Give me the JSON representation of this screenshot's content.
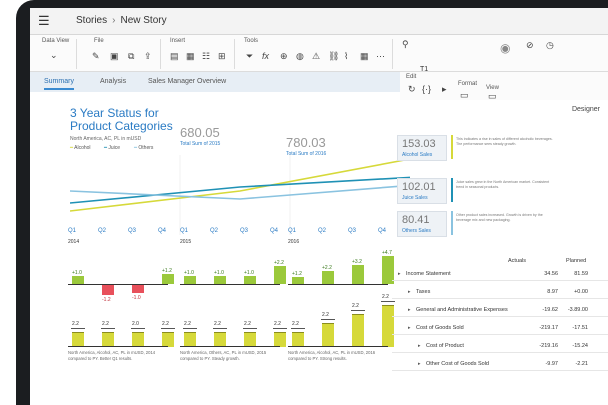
{
  "titlebar": {
    "crumb_root": "Stories",
    "crumb_current": "New Story"
  },
  "ribbon": {
    "data_view": "Data View",
    "file": "File",
    "insert": "Insert",
    "tools": "Tools",
    "edit": "Edit",
    "format": "Format",
    "view": "View",
    "search_value": "T1"
  },
  "tabs": [
    "Summary",
    "Analysis",
    "Sales Manager Overview"
  ],
  "designer_label": "Designer",
  "overview": {
    "title_line1": "3 Year Status for",
    "title_line2": "Product Categories",
    "subtitle": "North America, AC, PL in mUSD",
    "legend": [
      "Alcohol",
      "Juice",
      "Others"
    ],
    "totals": [
      {
        "value": "680.05",
        "label": "Total Sum of 2015"
      },
      {
        "value": "780.03",
        "label": "Total Sum of 2016"
      }
    ]
  },
  "kpis": [
    {
      "value": "153.03",
      "label": "Alcohol Sales",
      "color": "#d6d93a",
      "text": "This indicates a rise in sales of different alcoholic beverages. The performance sees steady growth."
    },
    {
      "value": "102.01",
      "label": "Juice Sales",
      "color": "#1f91b5",
      "text": "Juice sales grew in the North American market. Consistent trend in seasonal products."
    },
    {
      "value": "80.41",
      "label": "Others Sales",
      "color": "#8ac3e0",
      "text": "Other product sales increased. Growth is driven by the beverage mix and new packaging."
    }
  ],
  "variance_panels": [
    {
      "quarters": [
        "Q1",
        "Q2",
        "Q3",
        "Q4"
      ],
      "year": "2014",
      "deltas": [
        "+1.0",
        "-1.2",
        "-1.0",
        "+1.2"
      ],
      "values": [
        "2.2",
        "2.2",
        "2.0",
        "2.2"
      ],
      "footnote": "North America, Alcohol, AC, PL in mUSD, 2014 compared to PY. Better Q1 results."
    },
    {
      "quarters": [
        "Q1",
        "Q2",
        "Q3",
        "Q4"
      ],
      "year": "2015",
      "deltas": [
        "+1.0",
        "+1.0",
        "+1.0",
        "+2.2"
      ],
      "values": [
        "2.2",
        "2.2",
        "2.2",
        "2.2"
      ],
      "footnote": "North America, Others, AC, PL in mUSD, 2015 compared to PY. Steady growth."
    },
    {
      "quarters": [
        "Q1",
        "Q2",
        "Q3",
        "Q4"
      ],
      "year": "2016",
      "deltas": [
        "+1.2",
        "+2.2",
        "+3.2",
        "+4.7"
      ],
      "values": [
        "2.2",
        "2.2",
        "2.2",
        "2.2"
      ],
      "footnote": "North America, Alcohol, AC, PL in mUSD, 2016 compared to PY. Strong results."
    }
  ],
  "table": {
    "col_actuals": "Actuals",
    "col_planned": "Planned",
    "rows": [
      {
        "label": "Income Statement",
        "actual": "34.56",
        "planned": "81.59",
        "indent": 0
      },
      {
        "label": "Taxes",
        "actual": "8.97",
        "planned": "+0.00",
        "indent": 1
      },
      {
        "label": "General and Administrative Expenses",
        "actual": "-19.62",
        "planned": "-3.89.00",
        "indent": 1
      },
      {
        "label": "Cost of Goods Sold",
        "actual": "-219.17",
        "planned": "-17.51",
        "indent": 1
      },
      {
        "label": "Cost of Product",
        "actual": "-219.16",
        "planned": "-15.24",
        "indent": 2
      },
      {
        "label": "Other Cost of Goods Sold",
        "actual": "-9.97",
        "planned": "-2.21",
        "indent": 2
      }
    ]
  },
  "chart_data": {
    "type": "line",
    "title": "3 Year Status for Product Categories",
    "x": [
      "2014",
      "2015",
      "2016"
    ],
    "series": [
      {
        "name": "Alcohol",
        "values": [
          30,
          55,
          95
        ],
        "color": "#d6d93a"
      },
      {
        "name": "Juice",
        "values": [
          40,
          60,
          72
        ],
        "color": "#1f91b5"
      },
      {
        "name": "Others",
        "values": [
          55,
          45,
          62
        ],
        "color": "#8ac3e0"
      }
    ]
  }
}
